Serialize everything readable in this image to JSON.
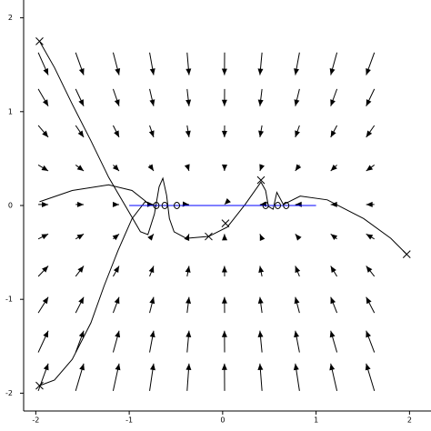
{
  "chart_data": {
    "type": "quiver",
    "xlim": [
      -2.13,
      2.23
    ],
    "ylim": [
      -2.19,
      2.19
    ],
    "xticks": [
      -2,
      -1,
      0,
      1,
      2
    ],
    "yticks": [
      -2,
      -1,
      0,
      1,
      2
    ],
    "field": {
      "color": "#000000",
      "x": [
        -1.92,
        -1.53,
        -1.14,
        -0.76,
        -0.37,
        0.02,
        0.41,
        0.8,
        1.19,
        1.58
      ],
      "y": [
        1.51,
        1.15,
        0.79,
        0.4,
        0.01,
        -0.33,
        -0.7,
        -1.06,
        -1.45,
        -1.83
      ],
      "u": [
        0.67,
        0.54,
        0.4,
        0.27,
        0.13,
        -0.01,
        -0.14,
        -0.28,
        -0.42,
        -0.55
      ],
      "v": [
        -1.51,
        -1.15,
        -0.79,
        -0.4,
        -0.01,
        0.33,
        0.7,
        1.06,
        1.45,
        1.83
      ]
    },
    "series": [
      {
        "color": "#000000",
        "x": [
          -1.96,
          -1.8,
          -1.61,
          -1.41,
          -1.22,
          -1.02,
          -0.88,
          -0.8,
          -0.73,
          -0.68,
          -0.64,
          -0.6,
          -0.57,
          -0.52,
          -0.39,
          -0.15
        ],
        "values": [
          1.75,
          1.47,
          1.08,
          0.69,
          0.3,
          -0.04,
          -0.28,
          -0.31,
          -0.09,
          0.2,
          0.29,
          0.11,
          -0.14,
          -0.28,
          -0.35,
          -0.33
        ]
      },
      {
        "color": "#000000",
        "x": [
          -1.96,
          -1.8,
          -1.61,
          -1.41,
          -1.27,
          -1.12,
          -0.97,
          -0.83,
          -0.71
        ],
        "values": [
          -1.92,
          -1.86,
          -1.64,
          -1.25,
          -0.86,
          -0.48,
          -0.14,
          0.04,
          -0.01
        ]
      },
      {
        "color": "#000000",
        "x": [
          -1.96,
          -1.61,
          -1.22,
          -0.97,
          -0.78
        ],
        "values": [
          0.04,
          0.16,
          0.22,
          0.16,
          0.01
        ]
      },
      {
        "color": "#000000",
        "x": [
          -0.15,
          0.05,
          0.24,
          0.41,
          0.46,
          0.49,
          0.54,
          0.58,
          0.65,
          0.83,
          1.12,
          1.51,
          1.8,
          1.97
        ],
        "values": [
          -0.33,
          -0.23,
          0.01,
          0.25,
          0.16,
          -0.01,
          -0.04,
          0.14,
          0.01,
          0.1,
          0.06,
          -0.14,
          -0.35,
          -0.52
        ]
      },
      {
        "color": "#0000ff",
        "x": [
          -1,
          1
        ],
        "values": [
          0,
          0
        ]
      }
    ],
    "markers": [
      {
        "marker": "x",
        "color": "#000000",
        "x": [
          -1.96,
          -1.96,
          0.41,
          -0.15,
          0.03,
          1.97
        ],
        "values": [
          1.75,
          -1.92,
          0.27,
          -0.33,
          -0.19,
          -0.52
        ]
      },
      {
        "marker": "o",
        "color": "#000000",
        "x": [
          -0.71,
          -0.62,
          -0.49,
          0.46,
          0.59,
          0.68
        ],
        "values": [
          0,
          0,
          0,
          0,
          0,
          0
        ]
      }
    ]
  }
}
